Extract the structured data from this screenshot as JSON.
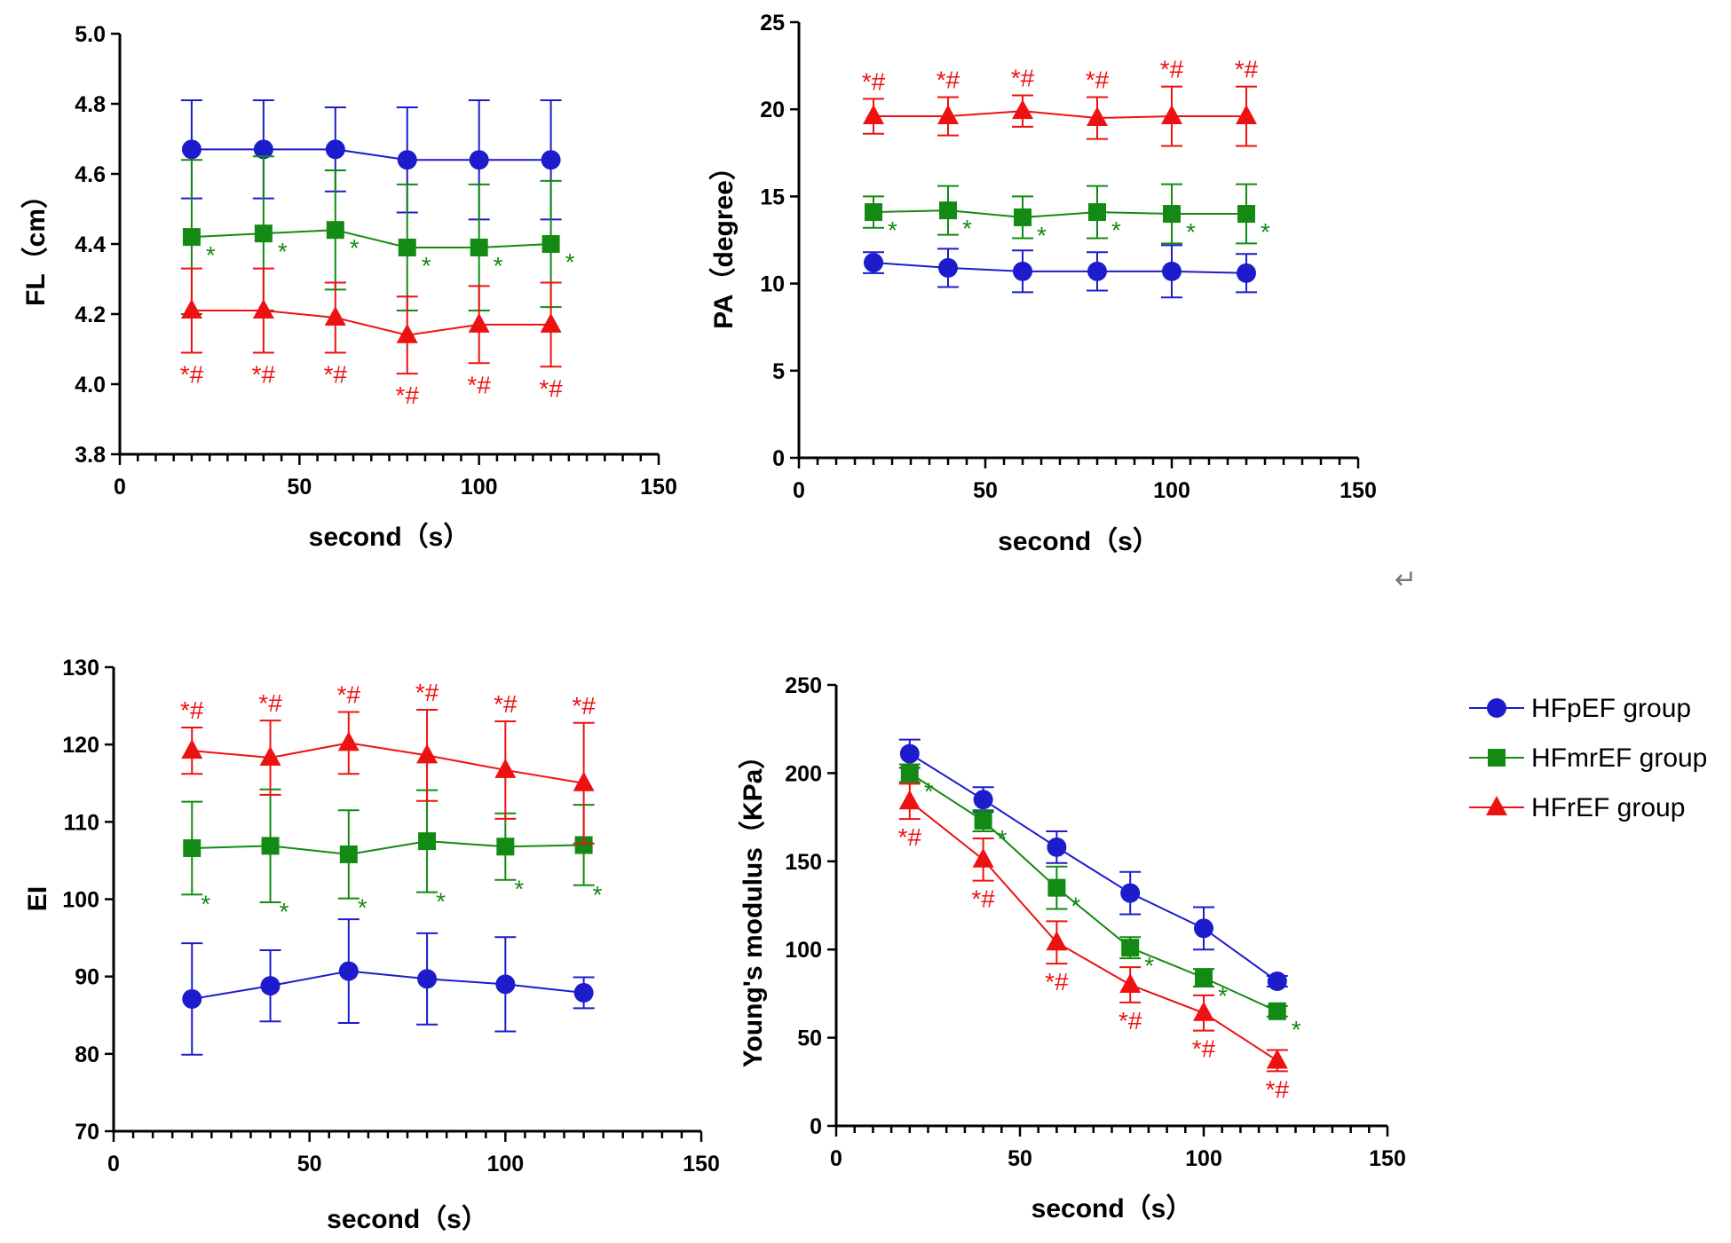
{
  "colors": {
    "HFpEF": "#1c1ccc",
    "HFmrEF": "#138a13",
    "HFrEF": "#ee1111",
    "axis": "#000000"
  },
  "legend": {
    "entries": [
      {
        "label": "HFpEF group",
        "color": "#1c1ccc",
        "marker": "circle"
      },
      {
        "label": "HFmrEF group",
        "color": "#138a13",
        "marker": "square"
      },
      {
        "label": "HFrEF group",
        "color": "#ee1111",
        "marker": "triangle"
      }
    ]
  },
  "return_symbol": "↵",
  "chart_data": [
    {
      "id": "fl",
      "type": "line",
      "title": "",
      "xlabel": "second（s）",
      "ylabel": "FL（cm）",
      "xlim": [
        0,
        150
      ],
      "ylim": [
        3.8,
        5.0
      ],
      "xticks": [
        0,
        50,
        100,
        150
      ],
      "yticks": [
        3.8,
        4.0,
        4.2,
        4.4,
        4.6,
        4.8,
        5.0
      ],
      "ytick_labels": [
        "3.8",
        "4.0",
        "4.2",
        "4.4",
        "4.6",
        "4.8",
        "5.0"
      ],
      "x": [
        20,
        40,
        60,
        80,
        100,
        120
      ],
      "series": [
        {
          "name": "HFpEF group",
          "marker": "circle",
          "values": [
            4.67,
            4.67,
            4.67,
            4.64,
            4.64,
            4.64
          ],
          "errors": [
            0.14,
            0.14,
            0.12,
            0.15,
            0.17,
            0.17
          ],
          "annotations": []
        },
        {
          "name": "HFmrEF group",
          "marker": "square",
          "values": [
            4.42,
            4.43,
            4.44,
            4.39,
            4.39,
            4.4
          ],
          "errors": [
            0.22,
            0.22,
            0.17,
            0.18,
            0.18,
            0.18
          ],
          "annotations": [
            "*",
            "*",
            "*",
            "*",
            "*",
            "*"
          ]
        },
        {
          "name": "HFrEF group",
          "marker": "triangle",
          "values": [
            4.21,
            4.21,
            4.19,
            4.14,
            4.17,
            4.17
          ],
          "errors": [
            0.12,
            0.12,
            0.1,
            0.11,
            0.11,
            0.12
          ],
          "annotations": [
            "*#",
            "*#",
            "*#",
            "*#",
            "*#",
            "*#"
          ]
        }
      ]
    },
    {
      "id": "pa",
      "type": "line",
      "title": "",
      "xlabel": "second（s）",
      "ylabel": "PA（degree）",
      "xlim": [
        0,
        150
      ],
      "ylim": [
        0,
        25
      ],
      "xticks": [
        0,
        50,
        100,
        150
      ],
      "yticks": [
        0,
        5,
        10,
        15,
        20,
        25
      ],
      "ytick_labels": [
        "0",
        "5",
        "10",
        "15",
        "20",
        "25"
      ],
      "x": [
        20,
        40,
        60,
        80,
        100,
        120
      ],
      "series": [
        {
          "name": "HFpEF group",
          "marker": "circle",
          "values": [
            11.2,
            10.9,
            10.7,
            10.7,
            10.7,
            10.6
          ],
          "errors": [
            0.6,
            1.1,
            1.2,
            1.1,
            1.5,
            1.1
          ],
          "annotations": []
        },
        {
          "name": "HFmrEF group",
          "marker": "square",
          "values": [
            14.1,
            14.2,
            13.8,
            14.1,
            14.0,
            14.0
          ],
          "errors": [
            0.9,
            1.4,
            1.2,
            1.5,
            1.7,
            1.7
          ],
          "annotations": [
            "*",
            "*",
            "*",
            "*",
            "*",
            "*"
          ]
        },
        {
          "name": "HFrEF group",
          "marker": "triangle",
          "values": [
            19.6,
            19.6,
            19.9,
            19.5,
            19.6,
            19.6
          ],
          "errors": [
            1.0,
            1.1,
            0.9,
            1.2,
            1.7,
            1.7
          ],
          "annotations": [
            "*#",
            "*#",
            "*#",
            "*#",
            "*#",
            "*#"
          ]
        }
      ]
    },
    {
      "id": "ei",
      "type": "line",
      "title": "",
      "xlabel": "second（s）",
      "ylabel": "EI",
      "xlim": [
        0,
        150
      ],
      "ylim": [
        70,
        130
      ],
      "xticks": [
        0,
        50,
        100,
        150
      ],
      "yticks": [
        70,
        80,
        90,
        100,
        110,
        120,
        130
      ],
      "ytick_labels": [
        "70",
        "80",
        "90",
        "100",
        "110",
        "120",
        "130"
      ],
      "x": [
        20,
        40,
        60,
        80,
        100,
        120
      ],
      "series": [
        {
          "name": "HFpEF group",
          "marker": "circle",
          "values": [
            87.1,
            88.8,
            90.7,
            89.7,
            89.0,
            87.9
          ],
          "errors": [
            7.2,
            4.6,
            6.7,
            5.9,
            6.1,
            2.0
          ],
          "annotations": []
        },
        {
          "name": "HFmrEF group",
          "marker": "square",
          "values": [
            106.6,
            106.9,
            105.8,
            107.5,
            106.8,
            107.0
          ],
          "errors": [
            6.0,
            7.3,
            5.7,
            6.6,
            4.3,
            5.2
          ],
          "annotations": [
            "*",
            "*",
            "*",
            "*",
            "*",
            "*"
          ]
        },
        {
          "name": "HFrEF group",
          "marker": "triangle",
          "values": [
            119.2,
            118.3,
            120.2,
            118.6,
            116.7,
            115.0
          ],
          "errors": [
            3.0,
            4.8,
            4.0,
            5.9,
            6.3,
            7.8
          ],
          "annotations": [
            "*#",
            "*#",
            "*#",
            "*#",
            "*#",
            "*#"
          ]
        }
      ]
    },
    {
      "id": "ym",
      "type": "line",
      "title": "",
      "xlabel": "second（s）",
      "ylabel": "Young's modulus（KPa）",
      "xlim": [
        0,
        150
      ],
      "ylim": [
        0,
        250
      ],
      "xticks": [
        0,
        50,
        100,
        150
      ],
      "yticks": [
        0,
        50,
        100,
        150,
        200,
        250
      ],
      "ytick_labels": [
        "0",
        "50",
        "100",
        "150",
        "200",
        "250"
      ],
      "x": [
        20,
        40,
        60,
        80,
        100,
        120
      ],
      "series": [
        {
          "name": "HFpEF group",
          "marker": "circle",
          "values": [
            211,
            185,
            158,
            132,
            112,
            82
          ],
          "errors": [
            8,
            7,
            9,
            12,
            12,
            3
          ],
          "annotations": []
        },
        {
          "name": "HFmrEF group",
          "marker": "square",
          "values": [
            200,
            173,
            135,
            101,
            84,
            65
          ],
          "errors": [
            5,
            6,
            12,
            6,
            5,
            3
          ],
          "annotations": [
            "*",
            "*",
            "*",
            "*",
            "*",
            "*"
          ]
        },
        {
          "name": "HFrEF group",
          "marker": "triangle",
          "values": [
            184,
            151,
            104,
            80,
            64,
            37
          ],
          "errors": [
            10,
            12,
            12,
            10,
            10,
            6
          ],
          "annotations": [
            "*#",
            "*#",
            "*#",
            "*#",
            "*#",
            "*#"
          ]
        }
      ]
    }
  ]
}
